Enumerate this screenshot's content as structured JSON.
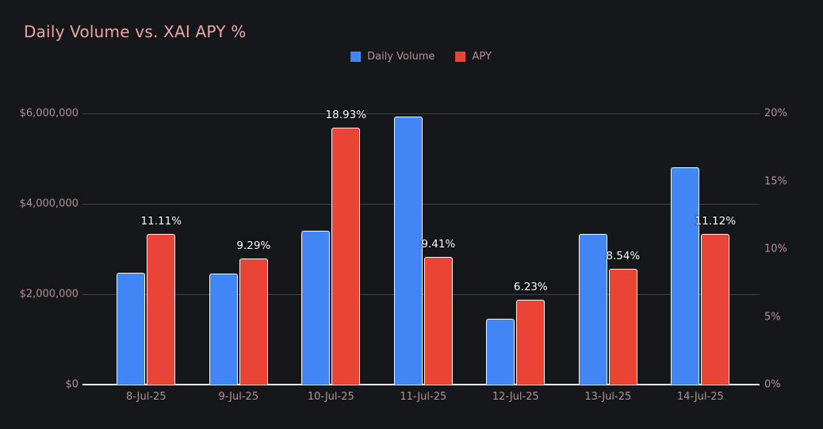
{
  "title": "Daily Volume vs. XAI APY %",
  "legend": {
    "items": [
      {
        "name": "daily-volume",
        "label": "Daily Volume",
        "color": "#4285f4"
      },
      {
        "name": "apy",
        "label": "APY",
        "color": "#e94435"
      }
    ]
  },
  "colors": {
    "background": "#16171b",
    "title": "#e9a7a3",
    "axis_text": "#b29292",
    "gridline": "#3d4046",
    "axis_line": "#e9e9e9",
    "volume_bar": "#4285f4",
    "apy_bar": "#e94435",
    "bar_border": "#f7f7f7",
    "data_label": "#ffffff"
  },
  "chart_data": {
    "type": "bar",
    "title": "Daily Volume vs. XAI APY %",
    "categories": [
      "8-Jul-25",
      "9-Jul-25",
      "10-Jul-25",
      "11-Jul-25",
      "12-Jul-25",
      "13-Jul-25",
      "14-Jul-25"
    ],
    "series": [
      {
        "name": "Daily Volume",
        "axis": "left",
        "color": "#4285f4",
        "values": [
          2470000,
          2460000,
          3410000,
          5930000,
          1450000,
          3340000,
          4810000
        ]
      },
      {
        "name": "APY",
        "axis": "right",
        "color": "#e94435",
        "values": [
          11.11,
          9.29,
          18.93,
          9.41,
          6.23,
          8.54,
          11.12
        ],
        "point_labels": [
          "11.11%",
          "9.29%",
          "18.93%",
          "9.41%",
          "6.23%",
          "8.54%",
          "11.12%"
        ]
      }
    ],
    "left_axis": {
      "min": 0,
      "max": 6000000,
      "tick_values": [
        0,
        2000000,
        4000000,
        6000000
      ],
      "tick_labels": [
        "$0",
        "$2,000,000",
        "$4,000,000",
        "$6,000,000"
      ]
    },
    "right_axis": {
      "min": 0,
      "max": 20,
      "tick_values": [
        0,
        5,
        10,
        15,
        20
      ],
      "tick_labels": [
        "0%",
        "5%",
        "10%",
        "15%",
        "20%"
      ]
    },
    "grid": true,
    "legend_position": "top-center"
  }
}
